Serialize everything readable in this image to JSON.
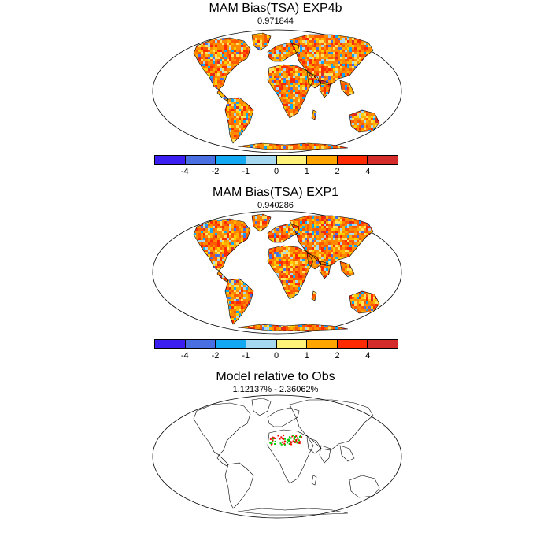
{
  "panels": [
    {
      "title": "MAM Bias(TSA) EXP4b",
      "subtitle": "0.971844"
    },
    {
      "title": "MAM Bias(TSA) EXP1",
      "subtitle": "0.940286"
    },
    {
      "title": "Model relative to Obs",
      "subtitle": "1.12137% - 2.36062%"
    }
  ],
  "colorbar": {
    "colors": [
      "#3b1ef0",
      "#4a6fe3",
      "#12a9f2",
      "#a6d9f0",
      "#fff27a",
      "#ffa500",
      "#ff2a00",
      "#d42b2b"
    ],
    "tick_labels": [
      "-4",
      "-2",
      "-1",
      "0",
      "1",
      "2",
      "4"
    ]
  },
  "bias_palette": [
    "#ff8a00",
    "#ff5a00",
    "#ff2a00",
    "#ffb300",
    "#ffe060",
    "#ffd000",
    "#a6d9f0",
    "#12a9f2",
    "#4a6fe3",
    "#3b1ef0",
    "#d42b2b"
  ],
  "relative_colors": [
    "#ff0000",
    "#00cc00"
  ]
}
